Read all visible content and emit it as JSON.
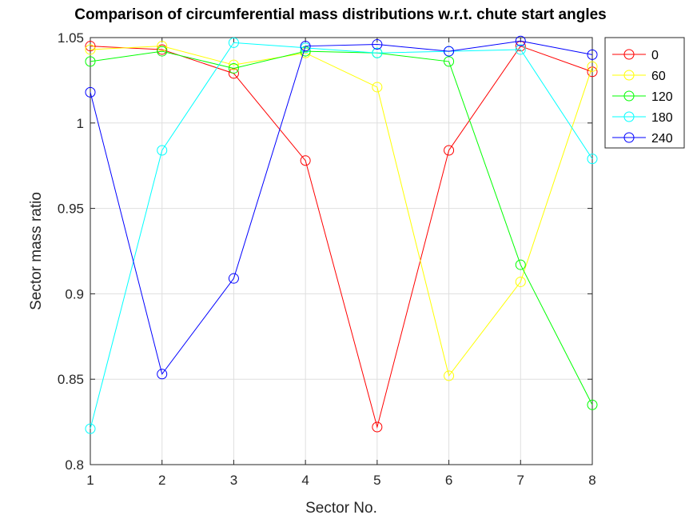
{
  "chart_data": {
    "type": "line",
    "title": "Comparison of circumferential mass distributions w.r.t. chute start angles",
    "xlabel": "Sector No.",
    "ylabel": "Sector mass ratio",
    "xlim": [
      1,
      8
    ],
    "ylim": [
      0.8,
      1.05
    ],
    "xticks": [
      "1",
      "2",
      "3",
      "4",
      "5",
      "6",
      "7",
      "8"
    ],
    "yticks": [
      "0.8",
      "0.85",
      "0.9",
      "0.95",
      "1",
      "1.05"
    ],
    "grid": true,
    "legend_position": "top-right-outside",
    "x": [
      1,
      2,
      3,
      4,
      5,
      6,
      7,
      8
    ],
    "series": [
      {
        "name": "0",
        "color": "#ff0000",
        "values": [
          1.045,
          1.043,
          1.029,
          0.978,
          0.822,
          0.984,
          1.045,
          1.03
        ]
      },
      {
        "name": "60",
        "color": "#ffff00",
        "values": [
          1.043,
          1.045,
          1.034,
          1.041,
          1.021,
          0.852,
          0.907,
          1.033
        ]
      },
      {
        "name": "120",
        "color": "#00ff00",
        "values": [
          1.036,
          1.042,
          1.032,
          1.042,
          1.041,
          1.036,
          0.917,
          0.835
        ]
      },
      {
        "name": "180",
        "color": "#00ffff",
        "values": [
          0.821,
          0.984,
          1.047,
          1.044,
          1.041,
          1.042,
          1.043,
          0.979
        ]
      },
      {
        "name": "240",
        "color": "#0000ff",
        "values": [
          1.018,
          0.853,
          0.909,
          1.045,
          1.046,
          1.042,
          1.048,
          1.04
        ]
      }
    ]
  }
}
